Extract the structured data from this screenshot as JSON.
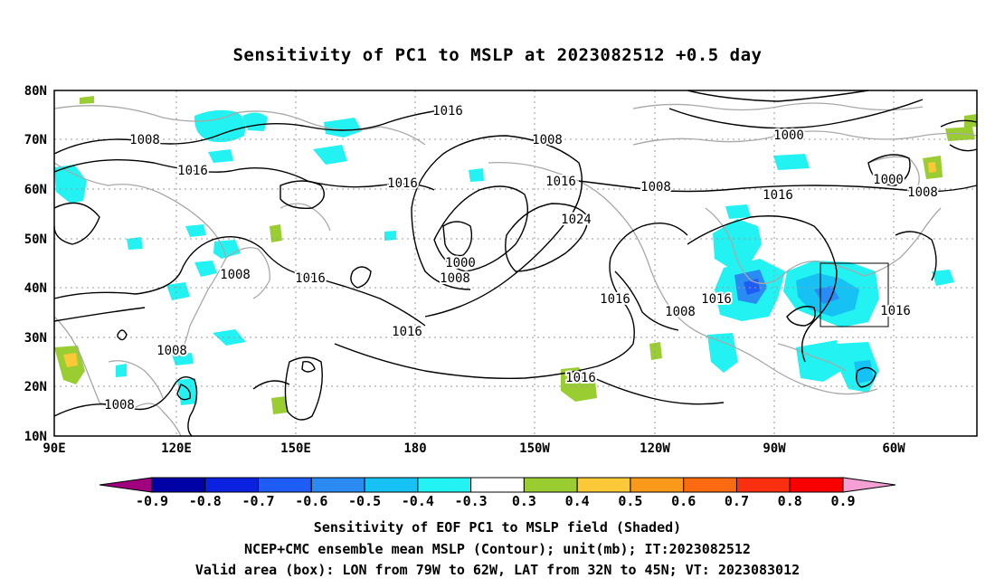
{
  "title": "Sensitivity of PC1 to MSLP at 2023082512 +0.5 day",
  "lat_labels": [
    "80N",
    "70N",
    "60N",
    "50N",
    "40N",
    "30N",
    "20N",
    "10N"
  ],
  "lon_labels": [
    "90E",
    "120E",
    "150E",
    "180",
    "150W",
    "120W",
    "90W",
    "60W"
  ],
  "contour_labels": [
    "1016",
    "1008",
    "1016",
    "1016",
    "1008",
    "1016",
    "1008",
    "1000",
    "1008",
    "1016",
    "1024",
    "1016",
    "1008",
    "1016",
    "1008",
    "1000",
    "1008",
    "1016",
    "1016",
    "1016",
    "1008",
    "1000",
    "1016",
    "1016",
    "1008"
  ],
  "colorbar": {
    "labels": [
      "-0.9",
      "-0.8",
      "-0.7",
      "-0.6",
      "-0.5",
      "-0.4",
      "-0.3",
      "0.3",
      "0.4",
      "0.5",
      "0.6",
      "0.7",
      "0.8",
      "0.9"
    ],
    "colors": [
      "#a0007d",
      "#0000a8",
      "#0a22e0",
      "#1e5cf5",
      "#2a8cf2",
      "#16c2f4",
      "#22f2f2",
      "#ffffff",
      "#9acd32",
      "#fbc838",
      "#fb9a1a",
      "#fb6a10",
      "#fb3010",
      "#f80000",
      "#f4a0d4"
    ]
  },
  "captions": {
    "line1": "Sensitivity of EOF PC1 to MSLP field (Shaded)",
    "line2": "NCEP+CMC ensemble mean MSLP (Contour); unit(mb); IT:2023082512",
    "line3": "Valid area (box): LON from 79W to 62W, LAT from 32N to 45N; VT: 2023083012"
  }
}
